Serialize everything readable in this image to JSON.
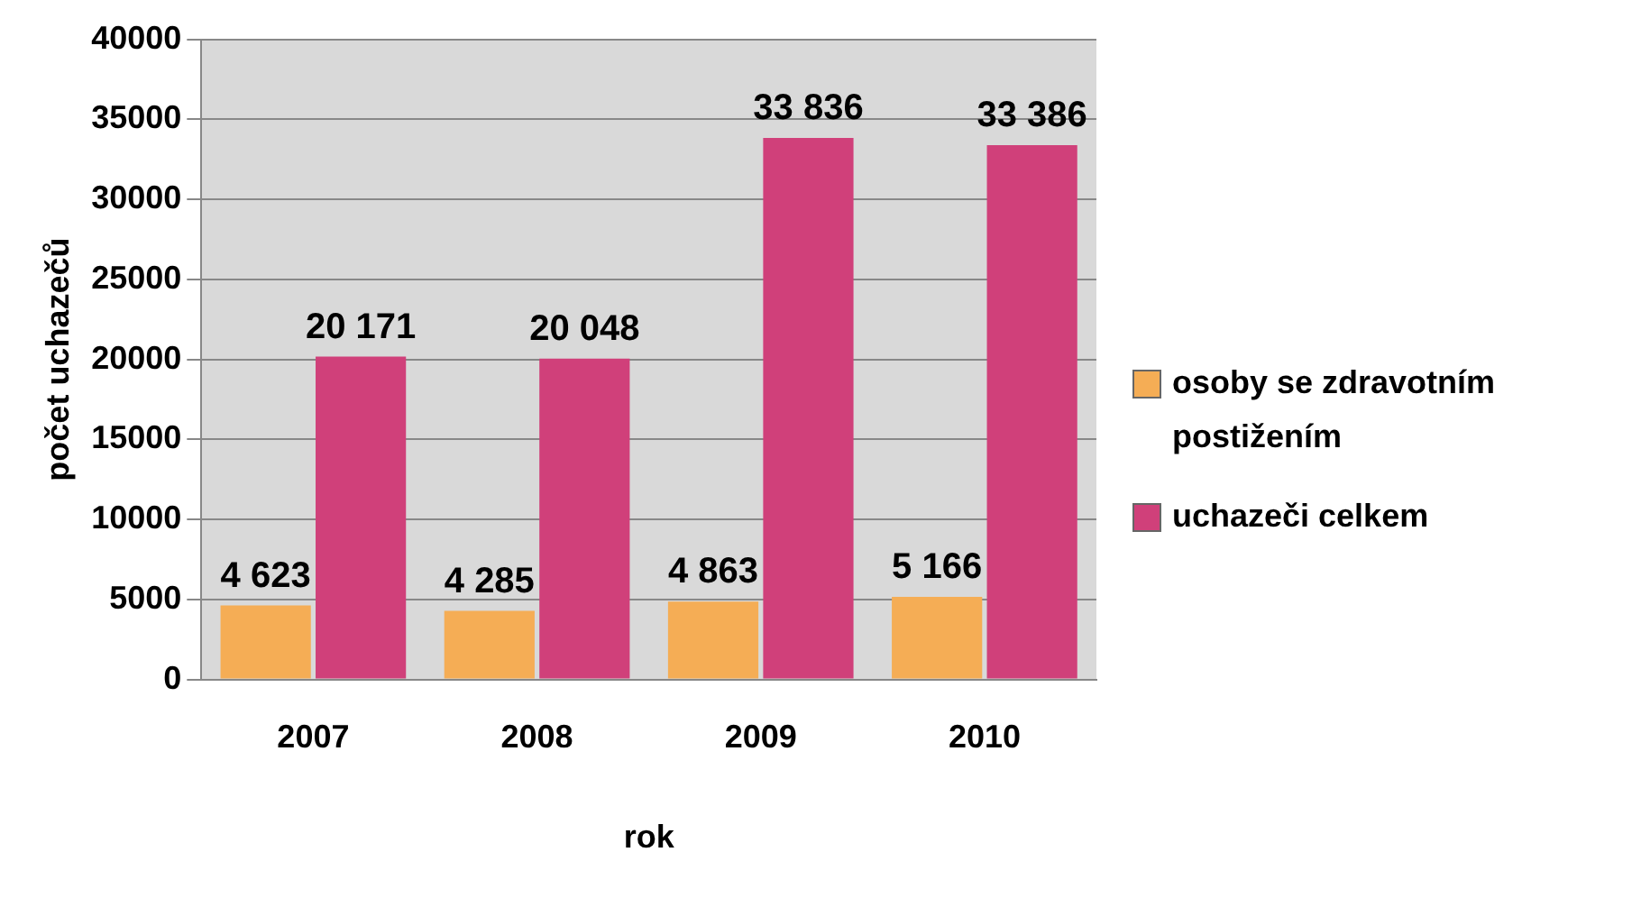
{
  "chart_data": {
    "type": "bar",
    "xlabel": "rok",
    "ylabel": "počet uchazečů",
    "categories": [
      "2007",
      "2008",
      "2009",
      "2010"
    ],
    "series": [
      {
        "name": "osoby se zdravotním postižením",
        "color": "#f5ad55",
        "values": [
          4623,
          4285,
          4863,
          5166
        ],
        "value_labels": [
          "4 623",
          "4 285",
          "4 863",
          "5 166"
        ]
      },
      {
        "name": "uchazeči celkem",
        "color": "#d0407a",
        "values": [
          20171,
          20048,
          33836,
          33386
        ],
        "value_labels": [
          "20 171",
          "20 048",
          "33 836",
          "33 386"
        ]
      }
    ],
    "ylim": [
      0,
      40000
    ],
    "yticks": [
      0,
      5000,
      10000,
      15000,
      20000,
      25000,
      30000,
      35000,
      40000
    ],
    "grid": "y",
    "legend": "right"
  }
}
